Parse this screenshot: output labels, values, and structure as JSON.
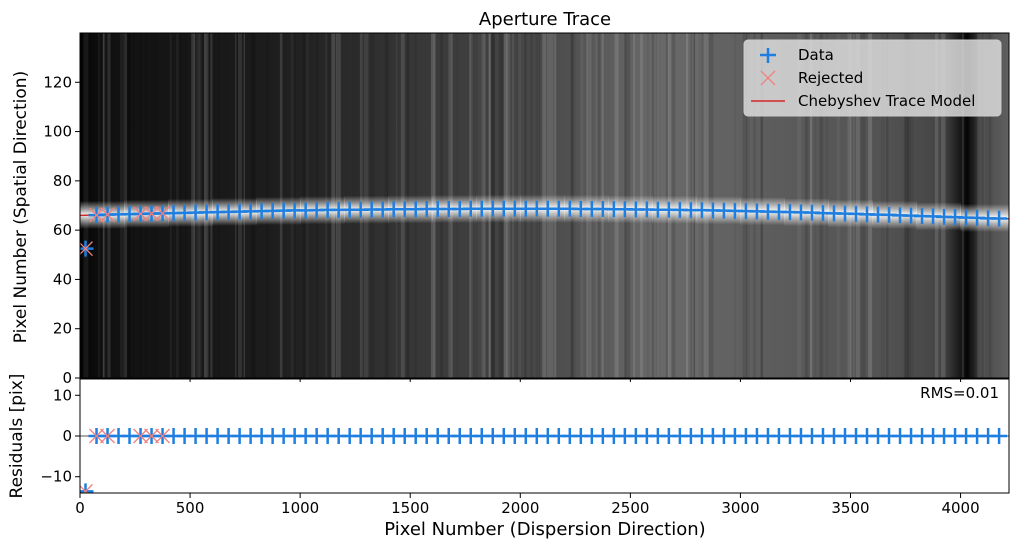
{
  "chart_data": [
    {
      "panel": "top",
      "type": "scatter",
      "title": "Aperture Trace",
      "xlabel": "",
      "ylabel": "Pixel Number (Spatial Direction)",
      "xlim": [
        0,
        4220
      ],
      "ylim": [
        0,
        140
      ],
      "yticks": [
        0,
        20,
        40,
        60,
        80,
        100,
        120
      ],
      "grid": false,
      "legend_position": "top-right",
      "background": "grayscale 2D spectrum image",
      "series": [
        {
          "name": "Data",
          "marker": "+",
          "color": "#1e7fe0",
          "x": [
            25,
            75,
            125,
            175,
            225,
            275,
            325,
            375,
            425,
            475,
            525,
            575,
            625,
            675,
            725,
            775,
            825,
            875,
            925,
            975,
            1025,
            1075,
            1125,
            1175,
            1225,
            1275,
            1325,
            1375,
            1425,
            1475,
            1525,
            1575,
            1625,
            1675,
            1725,
            1775,
            1825,
            1875,
            1925,
            1975,
            2025,
            2075,
            2125,
            2175,
            2225,
            2275,
            2325,
            2375,
            2425,
            2475,
            2525,
            2575,
            2625,
            2675,
            2725,
            2775,
            2825,
            2875,
            2925,
            2975,
            3025,
            3075,
            3125,
            3175,
            3225,
            3275,
            3325,
            3375,
            3425,
            3475,
            3525,
            3575,
            3625,
            3675,
            3725,
            3775,
            3825,
            3875,
            3925,
            3975,
            4025,
            4075,
            4125,
            4175
          ],
          "y": [
            52.5,
            66.1,
            66.3,
            66.4,
            66.5,
            66.6,
            66.7,
            66.8,
            66.9,
            67.0,
            67.1,
            67.2,
            67.3,
            67.4,
            67.5,
            67.6,
            67.7,
            67.8,
            67.9,
            68.0,
            68.0,
            68.1,
            68.2,
            68.2,
            68.3,
            68.3,
            68.4,
            68.4,
            68.5,
            68.5,
            68.5,
            68.6,
            68.6,
            68.6,
            68.6,
            68.7,
            68.7,
            68.7,
            68.7,
            68.7,
            68.7,
            68.7,
            68.7,
            68.7,
            68.7,
            68.6,
            68.6,
            68.6,
            68.5,
            68.5,
            68.4,
            68.4,
            68.3,
            68.3,
            68.2,
            68.1,
            68.1,
            68.0,
            67.9,
            67.8,
            67.7,
            67.6,
            67.5,
            67.4,
            67.3,
            67.2,
            67.1,
            66.9,
            66.8,
            66.7,
            66.6,
            66.4,
            66.3,
            66.2,
            66.0,
            65.9,
            65.7,
            65.6,
            65.4,
            65.3,
            65.1,
            65.0,
            64.8,
            64.7
          ]
        },
        {
          "name": "Rejected",
          "marker": "x",
          "color": "#f08080",
          "x": [
            25,
            75,
            125,
            275,
            325,
            375
          ],
          "y": [
            52.5,
            66.1,
            66.3,
            66.6,
            66.7,
            66.8
          ]
        },
        {
          "name": "Chebyshev Trace Model",
          "type": "line",
          "color": "#d62728",
          "x": [
            0,
            200,
            400,
            600,
            800,
            1000,
            1200,
            1400,
            1600,
            1800,
            2000,
            2200,
            2400,
            2600,
            2800,
            3000,
            3200,
            3400,
            3600,
            3800,
            4000,
            4220
          ],
          "y": [
            66.0,
            66.4,
            66.8,
            67.2,
            67.6,
            68.0,
            68.2,
            68.4,
            68.5,
            68.7,
            68.7,
            68.7,
            68.6,
            68.4,
            68.2,
            67.9,
            67.5,
            67.0,
            66.5,
            65.9,
            65.3,
            64.6
          ]
        }
      ]
    },
    {
      "panel": "bottom",
      "type": "scatter",
      "xlabel": "Pixel Number (Dispersion Direction)",
      "ylabel": "Residuals [pix]",
      "xlim": [
        0,
        4220
      ],
      "ylim": [
        -14,
        14
      ],
      "xticks": [
        0,
        500,
        1000,
        1500,
        2000,
        2500,
        3000,
        3500,
        4000
      ],
      "yticks": [
        -10,
        0,
        10
      ],
      "annotation": "RMS=0.01",
      "reference_line_y": 0,
      "series": [
        {
          "name": "Data",
          "marker": "+",
          "color": "#1e7fe0",
          "x": [
            75,
            125,
            175,
            225,
            275,
            325,
            375,
            425,
            475,
            525,
            575,
            625,
            675,
            725,
            775,
            825,
            875,
            925,
            975,
            1025,
            1075,
            1125,
            1175,
            1225,
            1275,
            1325,
            1375,
            1425,
            1475,
            1525,
            1575,
            1625,
            1675,
            1725,
            1775,
            1825,
            1875,
            1925,
            1975,
            2025,
            2075,
            2125,
            2175,
            2225,
            2275,
            2325,
            2375,
            2425,
            2475,
            2525,
            2575,
            2625,
            2675,
            2725,
            2775,
            2825,
            2875,
            2925,
            2975,
            3025,
            3075,
            3125,
            3175,
            3225,
            3275,
            3325,
            3375,
            3425,
            3475,
            3525,
            3575,
            3625,
            3675,
            3725,
            3775,
            3825,
            3875,
            3925,
            3975,
            4025,
            4075,
            4125,
            4175
          ],
          "y": 0,
          "outlier": {
            "x": 25,
            "y": -13.6
          }
        },
        {
          "name": "Rejected",
          "marker": "x",
          "color": "#f08080",
          "x": [
            25,
            75,
            125,
            275,
            325,
            375
          ],
          "y": [
            -13.6,
            0,
            0,
            0,
            0,
            0
          ]
        }
      ]
    }
  ]
}
